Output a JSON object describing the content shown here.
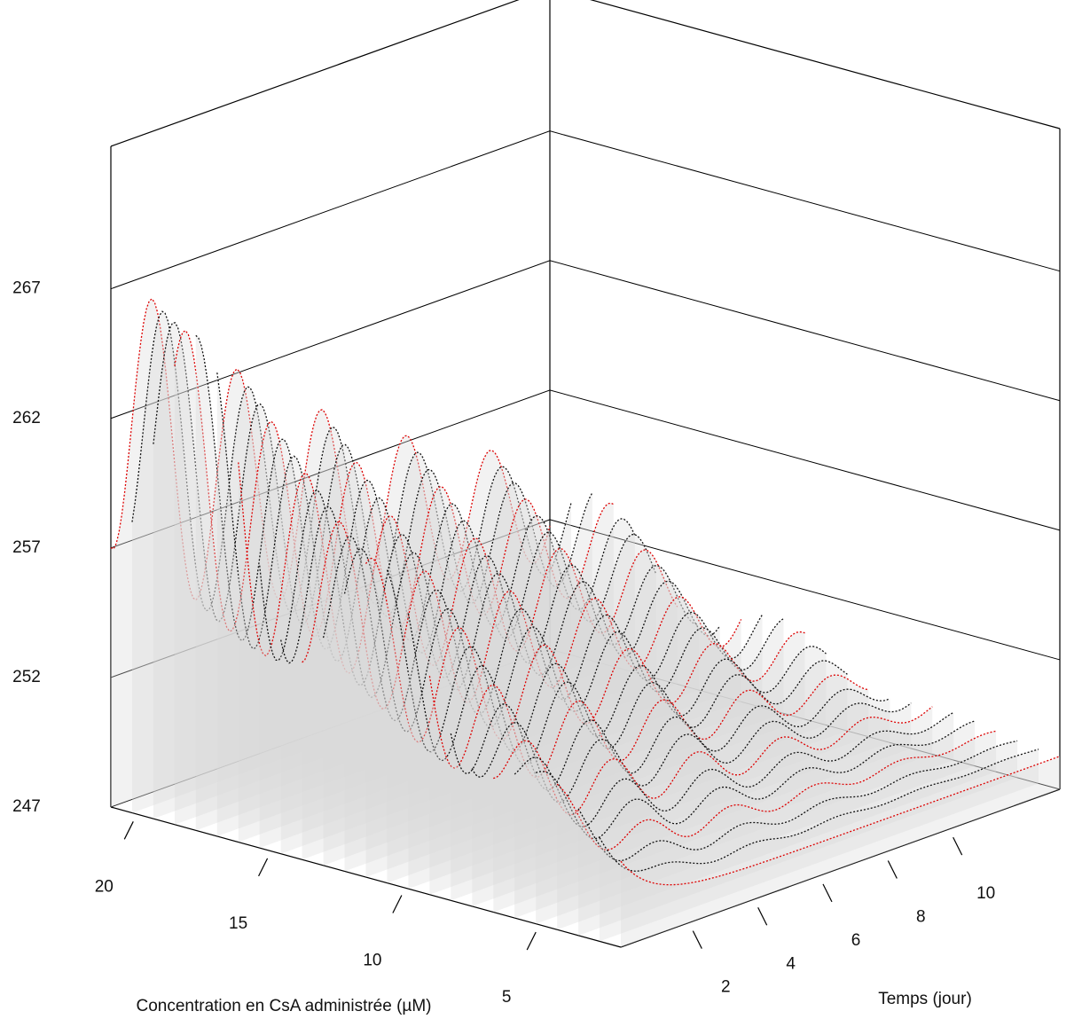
{
  "chart_data": {
    "type": "surface3d",
    "xlabel": "Concentration en CsA administrée (µM)",
    "ylabel": "Temps (jour)",
    "xlim": [
      2,
      21
    ],
    "xticks": [
      5,
      10,
      15,
      20
    ],
    "ylim": [
      0,
      13.5
    ],
    "yticks": [
      2,
      4,
      6,
      8,
      10
    ],
    "zlim": [
      247,
      272.5
    ],
    "zticks": [
      247,
      252,
      257,
      262,
      267
    ],
    "grid": true,
    "color": "#d9d9d9"
  }
}
